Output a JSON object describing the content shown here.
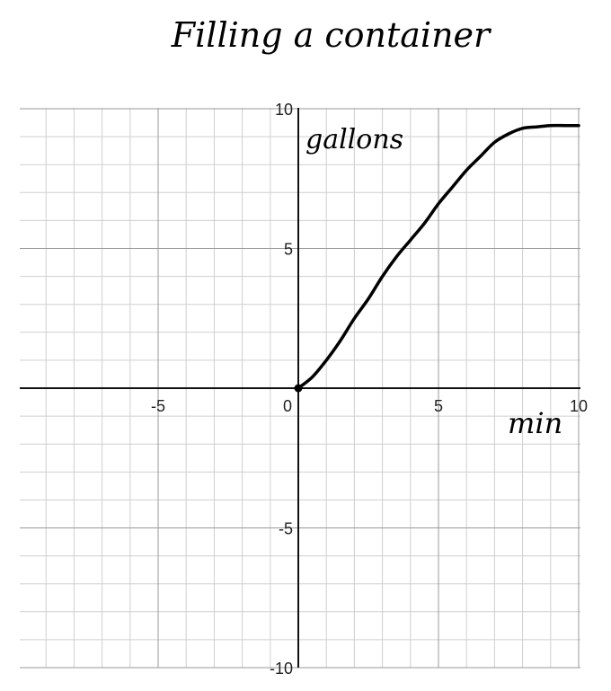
{
  "chart_data": {
    "type": "line",
    "title": "Filling a container",
    "xlabel": "min",
    "ylabel": "gallons",
    "xlim": [
      -10,
      10
    ],
    "ylim": [
      -10,
      10
    ],
    "grid": true,
    "x_ticks": [
      {
        "value": -5,
        "label": "-5"
      },
      {
        "value": 0,
        "label": "0"
      },
      {
        "value": 5,
        "label": "5"
      },
      {
        "value": 10,
        "label": "10"
      }
    ],
    "y_ticks": [
      {
        "value": 10,
        "label": "10"
      },
      {
        "value": 5,
        "label": "5"
      },
      {
        "value": -5,
        "label": "-5"
      },
      {
        "value": -10,
        "label": "-10"
      }
    ],
    "series": [
      {
        "x": [
          0,
          0.5,
          1,
          1.5,
          2,
          2.5,
          3,
          3.5,
          4,
          4.5,
          5,
          5.5,
          6,
          6.5,
          7,
          7.5,
          8,
          8.5,
          9,
          9.5,
          10
        ],
        "y": [
          0,
          0.4,
          1.0,
          1.7,
          2.5,
          3.2,
          4.0,
          4.7,
          5.3,
          5.9,
          6.6,
          7.2,
          7.8,
          8.3,
          8.8,
          9.1,
          9.3,
          9.35,
          9.4,
          9.4,
          9.4
        ],
        "start_point": {
          "x": 0,
          "y": 0
        }
      }
    ],
    "colors": {
      "curve": "#000000",
      "axis": "#111111",
      "grid_major": "#9a9a9a",
      "grid_minor": "#cfcfcf"
    }
  }
}
